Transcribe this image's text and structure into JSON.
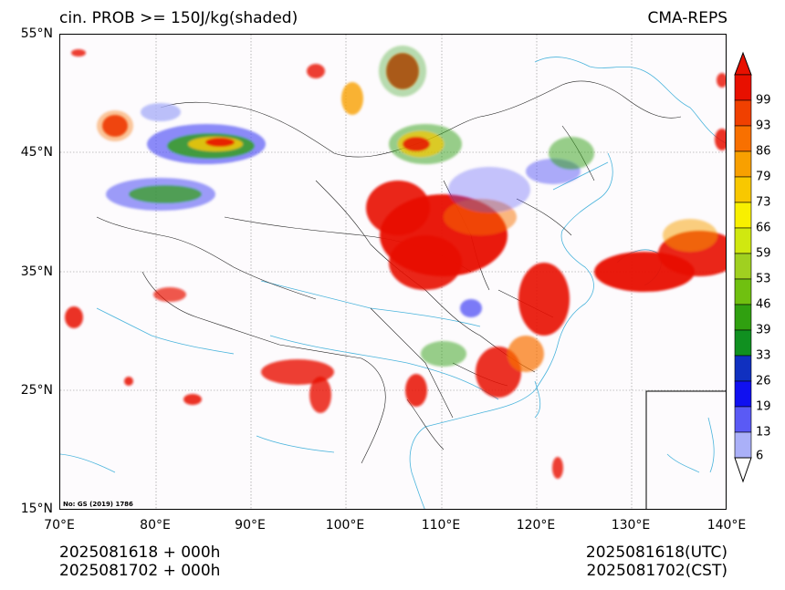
{
  "header": {
    "title_left": "cin. PROB >= 150J/kg(shaded)",
    "title_right": "CMA-REPS"
  },
  "axes": {
    "lat_labels": [
      "55°N",
      "45°N",
      "35°N",
      "25°N",
      "15°N"
    ],
    "lon_labels": [
      "70°E",
      "80°E",
      "90°E",
      "100°E",
      "110°E",
      "120°E",
      "130°E",
      "140°E"
    ]
  },
  "map": {
    "note": "No: GS (2019) 1786"
  },
  "colorbar": {
    "levels": [
      "6",
      "13",
      "19",
      "26",
      "33",
      "39",
      "46",
      "53",
      "59",
      "66",
      "73",
      "79",
      "86",
      "93",
      "99"
    ],
    "colors": [
      "#aab0f8",
      "#5a5af5",
      "#1010f0",
      "#1030c0",
      "#109020",
      "#30a010",
      "#70c010",
      "#a0d020",
      "#d0e810",
      "#f8f000",
      "#f8c800",
      "#f8a000",
      "#f87000",
      "#f04000",
      "#e81000"
    ]
  },
  "footer": {
    "left_line1": "2025081618  +  000h",
    "left_line2": "2025081702  +  000h",
    "right_line1": "2025081618(UTC)",
    "right_line2": "2025081702(CST)"
  }
}
